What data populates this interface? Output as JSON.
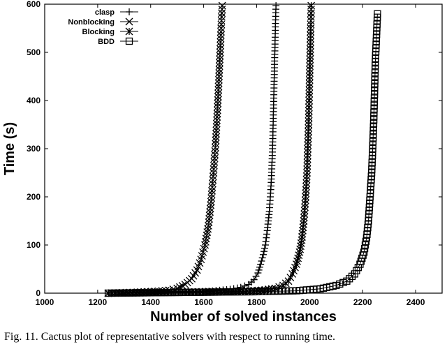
{
  "caption": "Fig. 11.   Cactus plot of representative solvers with respect to running time.",
  "chart_data": {
    "type": "scatter",
    "xlabel": "Number of solved instances",
    "ylabel": "Time (s)",
    "xlim": [
      1000,
      2500
    ],
    "ylim": [
      0,
      600
    ],
    "xticks": [
      1000,
      1200,
      1400,
      1600,
      1800,
      2000,
      2200,
      2400
    ],
    "yticks": [
      0,
      100,
      200,
      300,
      400,
      500,
      600
    ],
    "legend_position": "top-left",
    "grid": false,
    "series": [
      {
        "name": "clasp",
        "marker": "plus",
        "points": [
          [
            1240,
            0
          ],
          [
            1400,
            2
          ],
          [
            1500,
            3
          ],
          [
            1570,
            3
          ],
          [
            1620,
            4
          ],
          [
            1660,
            6
          ],
          [
            1700,
            8
          ],
          [
            1740,
            12
          ],
          [
            1770,
            18
          ],
          [
            1790,
            28
          ],
          [
            1805,
            42
          ],
          [
            1815,
            60
          ],
          [
            1825,
            80
          ],
          [
            1833,
            100
          ],
          [
            1840,
            130
          ],
          [
            1848,
            170
          ],
          [
            1855,
            230
          ],
          [
            1860,
            300
          ],
          [
            1863,
            370
          ],
          [
            1866,
            440
          ],
          [
            1869,
            510
          ],
          [
            1871,
            560
          ],
          [
            1873,
            597
          ]
        ]
      },
      {
        "name": "Nonblocking",
        "marker": "x",
        "points": [
          [
            1240,
            0
          ],
          [
            1350,
            2
          ],
          [
            1430,
            4
          ],
          [
            1470,
            6
          ],
          [
            1500,
            10
          ],
          [
            1530,
            18
          ],
          [
            1555,
            30
          ],
          [
            1575,
            48
          ],
          [
            1590,
            70
          ],
          [
            1605,
            100
          ],
          [
            1618,
            140
          ],
          [
            1628,
            190
          ],
          [
            1637,
            250
          ],
          [
            1645,
            310
          ],
          [
            1652,
            380
          ],
          [
            1658,
            450
          ],
          [
            1662,
            500
          ],
          [
            1666,
            550
          ],
          [
            1670,
            597
          ]
        ]
      },
      {
        "name": "Blocking",
        "marker": "asterisk",
        "points": [
          [
            1240,
            0
          ],
          [
            1500,
            2
          ],
          [
            1650,
            3
          ],
          [
            1750,
            4
          ],
          [
            1820,
            6
          ],
          [
            1870,
            10
          ],
          [
            1900,
            16
          ],
          [
            1920,
            25
          ],
          [
            1935,
            40
          ],
          [
            1950,
            60
          ],
          [
            1962,
            85
          ],
          [
            1970,
            110
          ],
          [
            1978,
            150
          ],
          [
            1985,
            200
          ],
          [
            1990,
            250
          ],
          [
            1993,
            300
          ],
          [
            1996,
            350
          ],
          [
            1998,
            400
          ],
          [
            2000,
            450
          ],
          [
            2002,
            500
          ],
          [
            2004,
            550
          ],
          [
            2006,
            597
          ]
        ]
      },
      {
        "name": "BDD",
        "marker": "square",
        "points": [
          [
            1240,
            0
          ],
          [
            1600,
            2
          ],
          [
            1800,
            3
          ],
          [
            1950,
            5
          ],
          [
            2040,
            9
          ],
          [
            2100,
            16
          ],
          [
            2140,
            25
          ],
          [
            2170,
            40
          ],
          [
            2190,
            60
          ],
          [
            2205,
            85
          ],
          [
            2215,
            115
          ],
          [
            2222,
            150
          ],
          [
            2228,
            200
          ],
          [
            2234,
            250
          ],
          [
            2238,
            300
          ],
          [
            2242,
            360
          ],
          [
            2245,
            420
          ],
          [
            2248,
            480
          ],
          [
            2252,
            530
          ],
          [
            2256,
            580
          ]
        ]
      }
    ]
  }
}
